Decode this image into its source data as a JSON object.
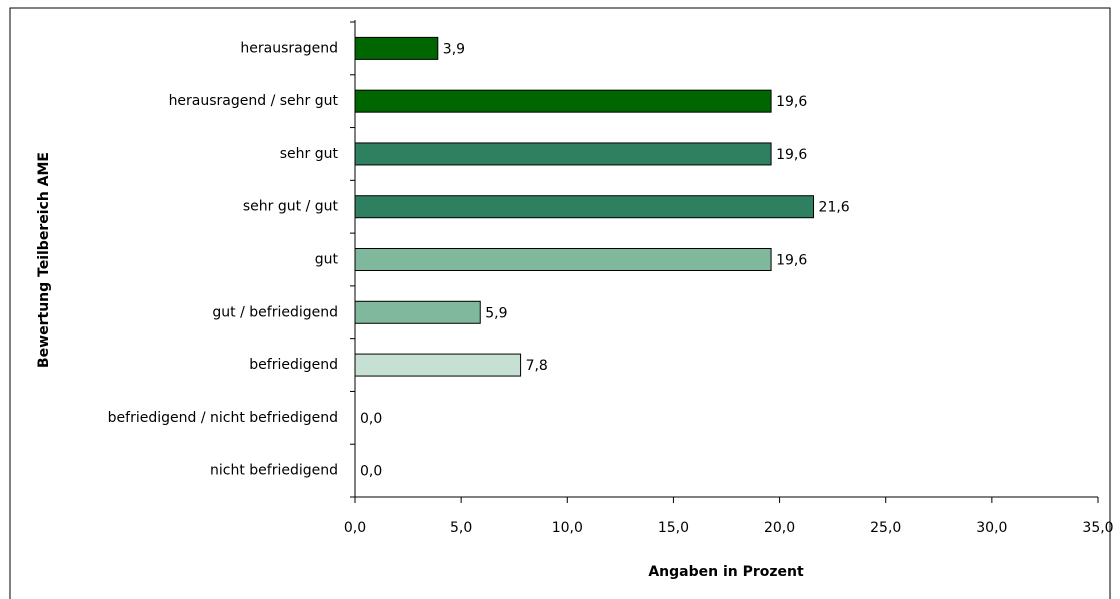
{
  "chart_data": {
    "type": "hbar",
    "ylabel": "Bewertung Teilbereich AME",
    "xlabel": "Angaben in Prozent",
    "categories": [
      "herausragend",
      "herausragend / sehr gut",
      "sehr gut",
      "sehr gut / gut",
      "gut",
      "gut / befriedigend",
      "befriedigend",
      "befriedigend / nicht befriedigend",
      "nicht befriedigend"
    ],
    "values": [
      3.9,
      19.6,
      19.6,
      21.6,
      19.6,
      5.9,
      7.8,
      0.0,
      0.0
    ],
    "value_labels": [
      "3,9",
      "19,6",
      "19,6",
      "21,6",
      "19,6",
      "5,9",
      "7,8",
      "0,0",
      "0,0"
    ],
    "colors": [
      "#006600",
      "#006600",
      "#2e8060",
      "#2e8060",
      "#7fb89d",
      "#7fb89d",
      "#c6e0d4",
      "#c6e0d4",
      "#c6e0d4"
    ],
    "xlim": [
      0,
      35
    ],
    "xticks": [
      {
        "value": 0,
        "label": "0,0"
      },
      {
        "value": 5,
        "label": "5,0"
      },
      {
        "value": 10,
        "label": "10,0"
      },
      {
        "value": 15,
        "label": "15,0"
      },
      {
        "value": 20,
        "label": "20,0"
      },
      {
        "value": 25,
        "label": "25,0"
      },
      {
        "value": 30,
        "label": "30,0"
      },
      {
        "value": 35,
        "label": "35,0"
      }
    ],
    "grid": false
  }
}
